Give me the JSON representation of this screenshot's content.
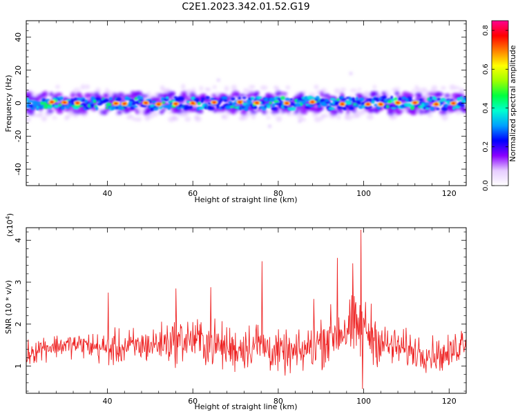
{
  "title": "C2E1.2023.342.01.52.G19",
  "chart_data": [
    {
      "type": "heatmap",
      "xlabel": "Height of straight line (km)",
      "ylabel": "Frequency (Hz)",
      "xlim": [
        21,
        124
      ],
      "ylim": [
        -50,
        50
      ],
      "xticks": [
        40,
        60,
        80,
        100,
        120
      ],
      "yticks": [
        -40,
        -20,
        0,
        20,
        40
      ],
      "band": {
        "center_hz": 0,
        "half_width_hz": 6,
        "faint_halo_hz": 10
      },
      "colorbar": {
        "label": "Normalized spectral amplitude",
        "range": [
          0,
          0.85
        ],
        "ticks": [
          0.0,
          0.2,
          0.4,
          0.6,
          0.8
        ],
        "colors": [
          "#ffffff",
          "#e6ccff",
          "#8a00ff",
          "#0000ff",
          "#00a0ff",
          "#00ffd0",
          "#00ff40",
          "#a0ff00",
          "#ffff00",
          "#ff8000",
          "#ff0000",
          "#ff0090"
        ]
      },
      "hotspots_km": [
        27,
        30,
        33,
        42,
        44,
        49,
        52,
        56,
        60,
        65,
        71,
        75,
        82,
        88,
        95,
        101,
        104,
        108,
        112,
        117,
        121
      ],
      "outliers": [
        {
          "x": 97,
          "y": 18
        },
        {
          "x": 78,
          "y": -14
        },
        {
          "x": 66,
          "y": 14
        },
        {
          "x": 85,
          "y": -11
        }
      ]
    },
    {
      "type": "line",
      "xlabel": "Height of straight line (km)",
      "ylabel": "SNR (10 * v/v)",
      "y_multiplier": "(x10^4)",
      "xlim": [
        21,
        124
      ],
      "ylim": [
        0.35,
        4.3
      ],
      "xticks": [
        40,
        60,
        80,
        100,
        120
      ],
      "yticks": [
        1,
        2,
        3,
        4
      ],
      "color": "#ee2222",
      "x": [
        21,
        25,
        30,
        35,
        40,
        45,
        50,
        55,
        60,
        65,
        70,
        75,
        80,
        85,
        90,
        95,
        100,
        105,
        110,
        115,
        120,
        124
      ],
      "mean": [
        1.3,
        1.45,
        1.5,
        1.5,
        1.4,
        1.45,
        1.5,
        1.6,
        1.65,
        1.5,
        1.4,
        1.55,
        1.3,
        1.3,
        1.6,
        1.85,
        1.9,
        1.5,
        1.4,
        1.3,
        1.25,
        1.7
      ],
      "amplitude": [
        0.35,
        0.35,
        0.3,
        0.35,
        0.45,
        0.5,
        0.45,
        0.6,
        0.6,
        0.65,
        0.6,
        0.65,
        0.55,
        0.55,
        0.7,
        0.8,
        0.9,
        0.55,
        0.5,
        0.45,
        0.45,
        0.5
      ],
      "peaks": [
        {
          "x": 76.2,
          "y": 3.5
        },
        {
          "x": 93.8,
          "y": 3.58
        },
        {
          "x": 99.4,
          "y": 4.25
        },
        {
          "x": 97.5,
          "y": 3.45
        },
        {
          "x": 40.2,
          "y": 2.75
        },
        {
          "x": 56.0,
          "y": 2.85
        },
        {
          "x": 64.2,
          "y": 2.88
        },
        {
          "x": 88.3,
          "y": 2.6
        },
        {
          "x": 99.7,
          "y": 0.45
        }
      ]
    }
  ]
}
